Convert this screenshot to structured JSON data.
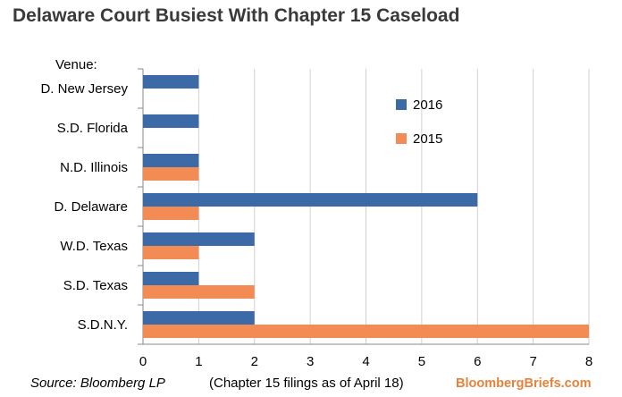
{
  "title": "Delaware Court Busiest With Chapter 15 Caseload",
  "footer": {
    "source": "Source: Bloomberg LP",
    "note": "(Chapter 15 filings as of April 18)",
    "brand": "BloombergBriefs.com",
    "brand_color": "#e8813a"
  },
  "chart_data": {
    "type": "bar",
    "orientation": "horizontal",
    "ylabel": "Venue:",
    "categories": [
      "D. New Jersey",
      "S.D. Florida",
      "N.D. Illinois",
      "D. Delaware",
      "W.D. Texas",
      "S.D. Texas",
      "S.D.N.Y."
    ],
    "series": [
      {
        "name": "2016",
        "color": "#3b6aa6",
        "values": [
          1,
          1,
          1,
          6,
          2,
          1,
          2
        ]
      },
      {
        "name": "2015",
        "color": "#f28b54",
        "values": [
          0,
          0,
          1,
          1,
          1,
          2,
          8
        ]
      }
    ],
    "xlim": [
      0,
      8
    ],
    "xticks": [
      "0",
      "1",
      "2",
      "3",
      "4",
      "5",
      "6",
      "7",
      "8"
    ],
    "grid": true,
    "legend_position": "right"
  }
}
